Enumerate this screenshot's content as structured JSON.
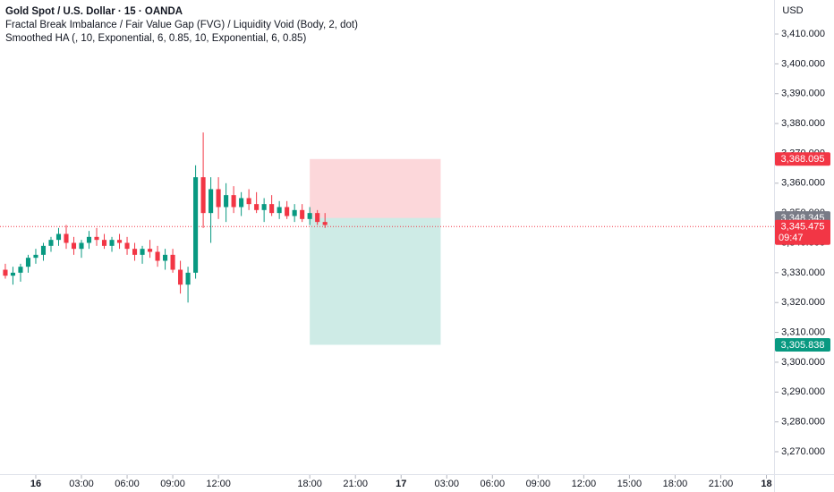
{
  "chart_data": {
    "type": "candlestick",
    "title": "Gold Spot / U.S. Dollar · 15 · OANDA",
    "indicators": [
      "Fractal Break Imbalance / Fair Value Gap (FVG) / Liquidity Void (Body, 2, dot)",
      "Smoothed HA (, 10, Exponential, 6, 0.85, 10, Exponential, 6, 0.85)"
    ],
    "currency": "USD",
    "up_color": "#089981",
    "down_color": "#f23645",
    "x": [
      -2,
      -1.5,
      -1,
      -0.5,
      0,
      0.5,
      1,
      1.5,
      2,
      2.5,
      3,
      3.5,
      4,
      4.5,
      5,
      5.5,
      6,
      6.5,
      7,
      7.5,
      8,
      8.5,
      9,
      9.5,
      10,
      10.5,
      11,
      11.5,
      12,
      12.5,
      13,
      13.5,
      14,
      14.5,
      15,
      15.5,
      16,
      16.5,
      17,
      17.5,
      18,
      18.5,
      19
    ],
    "open": [
      3331,
      3329,
      3330,
      3332,
      3335,
      3336,
      3339,
      3341,
      3343,
      3340,
      3338,
      3340,
      3342,
      3341,
      3339,
      3341,
      3340,
      3338,
      3336,
      3338,
      3337,
      3334,
      3336,
      3331,
      3326,
      3330,
      3362,
      3350,
      3358,
      3352,
      3356,
      3352,
      3355,
      3353,
      3351,
      3353,
      3350,
      3352,
      3349,
      3351,
      3348,
      3350,
      3347
    ],
    "high": [
      3333,
      3332,
      3333,
      3336,
      3338,
      3340,
      3342,
      3345,
      3346,
      3342,
      3341,
      3344,
      3345,
      3343,
      3342,
      3343,
      3342,
      3340,
      3339,
      3341,
      3339,
      3338,
      3338,
      3334,
      3332,
      3366,
      3377,
      3362,
      3362,
      3360,
      3359,
      3357,
      3358,
      3357,
      3355,
      3356,
      3354,
      3354,
      3353,
      3353,
      3352,
      3351,
      3350
    ],
    "low": [
      3328,
      3326,
      3327,
      3330,
      3333,
      3334,
      3337,
      3339,
      3338,
      3336,
      3335,
      3338,
      3339,
      3338,
      3337,
      3338,
      3336,
      3334,
      3333,
      3335,
      3332,
      3331,
      3330,
      3323,
      3320,
      3328,
      3345,
      3340,
      3348,
      3347,
      3350,
      3349,
      3351,
      3350,
      3347,
      3349,
      3348,
      3348,
      3347,
      3347,
      3346,
      3346,
      3345
    ],
    "close": [
      3329,
      3330,
      3332,
      3335,
      3336,
      3339,
      3341,
      3343,
      3340,
      3338,
      3340,
      3342,
      3341,
      3339,
      3341,
      3340,
      3338,
      3336,
      3338,
      3337,
      3334,
      3336,
      3331,
      3326,
      3330,
      3362,
      3350,
      3358,
      3352,
      3356,
      3352,
      3355,
      3353,
      3351,
      3353,
      3350,
      3352,
      3349,
      3351,
      3348,
      3350,
      3347,
      3346
    ],
    "xlim": [
      -2.35,
      48.5
    ],
    "xticks": [
      {
        "value": 0,
        "label": "16"
      },
      {
        "value": 3,
        "label": "03:00"
      },
      {
        "value": 6,
        "label": "06:00"
      },
      {
        "value": 9,
        "label": "09:00"
      },
      {
        "value": 12,
        "label": "12:00"
      },
      {
        "value": 18,
        "label": "18:00"
      },
      {
        "value": 21,
        "label": "21:00"
      },
      {
        "value": 24,
        "label": "17"
      },
      {
        "value": 27,
        "label": "03:00"
      },
      {
        "value": 30,
        "label": "06:00"
      },
      {
        "value": 33,
        "label": "09:00"
      },
      {
        "value": 36,
        "label": "12:00"
      },
      {
        "value": 39,
        "label": "15:00"
      },
      {
        "value": 42,
        "label": "18:00"
      },
      {
        "value": 45,
        "label": "21:00"
      },
      {
        "value": 48,
        "label": "18"
      }
    ],
    "ylim": [
      3262.5,
      3421.4
    ],
    "yticks": [
      {
        "value": 3270,
        "label": "3,270.000"
      },
      {
        "value": 3280,
        "label": "3,280.000"
      },
      {
        "value": 3290,
        "label": "3,290.000"
      },
      {
        "value": 3300,
        "label": "3,300.000"
      },
      {
        "value": 3310,
        "label": "3,310.000"
      },
      {
        "value": 3320,
        "label": "3,320.000"
      },
      {
        "value": 3330,
        "label": "3,330.000"
      },
      {
        "value": 3340,
        "label": "3,340.000"
      },
      {
        "value": 3350,
        "label": "3,350.000"
      },
      {
        "value": 3360,
        "label": "3,360.000"
      },
      {
        "value": 3370,
        "label": "3,370.000"
      },
      {
        "value": 3380,
        "label": "3,380.000"
      },
      {
        "value": 3390,
        "label": "3,390.000"
      },
      {
        "value": 3400,
        "label": "3,400.000"
      },
      {
        "value": 3410,
        "label": "3,410.000"
      }
    ],
    "position": {
      "start": 18,
      "end": 26.6,
      "entry": 3348.345,
      "stop": 3368.095,
      "target": 3305.838
    },
    "price_tags": [
      {
        "value": 3368.095,
        "label": "3,368.095",
        "color": "#f23645"
      },
      {
        "value": 3348.345,
        "label": "3,348.345",
        "color": "#787b86"
      },
      {
        "value": 3345.475,
        "label": "3,345.475",
        "color": "#f23645",
        "countdown": "09:47"
      },
      {
        "value": 3305.838,
        "label": "3,305.838",
        "color": "#089981"
      }
    ],
    "last_price": 3345.475
  }
}
